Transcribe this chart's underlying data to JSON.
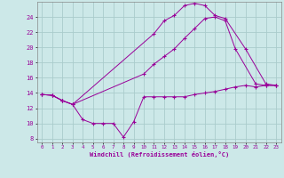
{
  "background_color": "#cce8e8",
  "line_color": "#990099",
  "grid_color": "#aacccc",
  "xlabel": "Windchill (Refroidissement éolien,°C)",
  "xlim": [
    -0.5,
    23.5
  ],
  "ylim": [
    7.5,
    26
  ],
  "yticks": [
    8,
    10,
    12,
    14,
    16,
    18,
    20,
    22,
    24
  ],
  "xticks": [
    0,
    1,
    2,
    3,
    4,
    5,
    6,
    7,
    8,
    9,
    10,
    11,
    12,
    13,
    14,
    15,
    16,
    17,
    18,
    19,
    20,
    21,
    22,
    23
  ],
  "line1_x": [
    0,
    1,
    2,
    3,
    4,
    5,
    6,
    7,
    8,
    9,
    10,
    11,
    12,
    13,
    14,
    15,
    16,
    17,
    18,
    19,
    20,
    21,
    22,
    23
  ],
  "line1_y": [
    13.8,
    13.7,
    13.0,
    12.5,
    10.5,
    10.0,
    10.0,
    10.0,
    8.2,
    10.2,
    13.5,
    13.5,
    13.5,
    13.5,
    13.5,
    13.8,
    14.0,
    14.2,
    14.5,
    14.8,
    15.0,
    14.8,
    15.0,
    15.0
  ],
  "line2_x": [
    0,
    1,
    2,
    3,
    11,
    12,
    13,
    14,
    15,
    16,
    17,
    18,
    20,
    22,
    23
  ],
  "line2_y": [
    13.8,
    13.7,
    13.0,
    12.5,
    21.8,
    23.5,
    24.2,
    25.5,
    25.8,
    25.5,
    24.2,
    23.8,
    19.8,
    15.2,
    15.0
  ],
  "line3_x": [
    0,
    1,
    2,
    3,
    10,
    11,
    12,
    13,
    14,
    15,
    16,
    17,
    18,
    19,
    21,
    22,
    23
  ],
  "line3_y": [
    13.8,
    13.7,
    13.0,
    12.5,
    16.5,
    17.8,
    18.8,
    19.8,
    21.2,
    22.5,
    23.8,
    24.0,
    23.5,
    19.8,
    15.2,
    15.0,
    15.0
  ]
}
